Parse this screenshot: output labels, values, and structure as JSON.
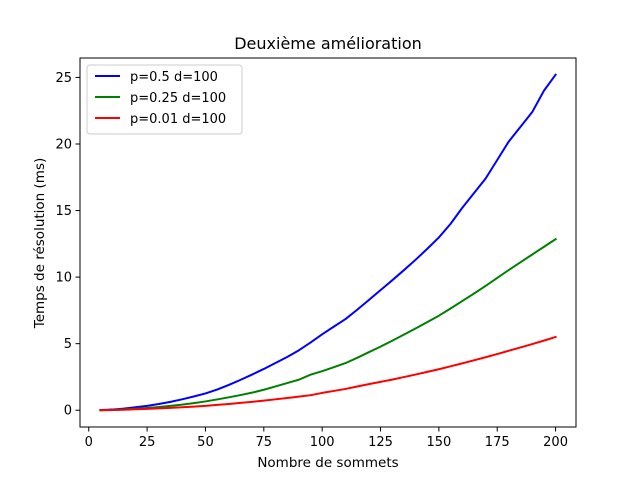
{
  "chart_data": {
    "type": "line",
    "title": "Deuxième amélioration",
    "xlabel": "Nombre de sommets",
    "ylabel": "Temps de résolution (ms)",
    "xlim": [
      -3.75,
      208.75
    ],
    "ylim": [
      -1.26,
      26.46
    ],
    "xticks": [
      0,
      25,
      50,
      75,
      100,
      125,
      150,
      175,
      200
    ],
    "yticks": [
      0,
      5,
      10,
      15,
      20,
      25
    ],
    "grid": false,
    "legend_position": "top-left",
    "x": [
      5,
      10,
      15,
      20,
      25,
      30,
      35,
      40,
      45,
      50,
      55,
      60,
      65,
      70,
      75,
      80,
      85,
      90,
      95,
      100,
      105,
      110,
      115,
      120,
      125,
      130,
      135,
      140,
      145,
      150,
      155,
      160,
      165,
      170,
      175,
      180,
      185,
      190,
      195,
      200
    ],
    "series": [
      {
        "name": "p=0.5 d=100",
        "color": "#0000ff",
        "values": [
          0.01,
          0.05,
          0.12,
          0.22,
          0.33,
          0.47,
          0.63,
          0.82,
          1.03,
          1.26,
          1.55,
          1.9,
          2.28,
          2.68,
          3.1,
          3.55,
          4.0,
          4.5,
          5.08,
          5.7,
          6.28,
          6.85,
          7.55,
          8.28,
          9.02,
          9.76,
          10.52,
          11.3,
          12.12,
          12.98,
          14.0,
          15.2,
          16.3,
          17.4,
          18.8,
          20.2,
          21.3,
          22.4,
          24.0,
          25.2
        ]
      },
      {
        "name": "p=0.25 d=100",
        "color": "#008000",
        "values": [
          0.0,
          0.02,
          0.06,
          0.11,
          0.17,
          0.24,
          0.33,
          0.42,
          0.53,
          0.66,
          0.81,
          0.97,
          1.14,
          1.32,
          1.54,
          1.79,
          2.04,
          2.29,
          2.67,
          2.93,
          3.23,
          3.54,
          3.94,
          4.36,
          4.78,
          5.22,
          5.68,
          6.14,
          6.62,
          7.1,
          7.64,
          8.2,
          8.76,
          9.34,
          9.94,
          10.54,
          11.12,
          11.7,
          12.27,
          12.85
        ]
      },
      {
        "name": "p=0.01 d=100",
        "color": "#ff0000",
        "values": [
          0.0,
          0.02,
          0.04,
          0.07,
          0.1,
          0.14,
          0.18,
          0.22,
          0.27,
          0.33,
          0.4,
          0.47,
          0.55,
          0.63,
          0.72,
          0.82,
          0.92,
          1.02,
          1.13,
          1.3,
          1.45,
          1.6,
          1.78,
          1.96,
          2.13,
          2.3,
          2.49,
          2.68,
          2.88,
          3.08,
          3.3,
          3.52,
          3.75,
          3.98,
          4.22,
          4.47,
          4.72,
          4.97,
          5.23,
          5.5
        ]
      }
    ]
  }
}
